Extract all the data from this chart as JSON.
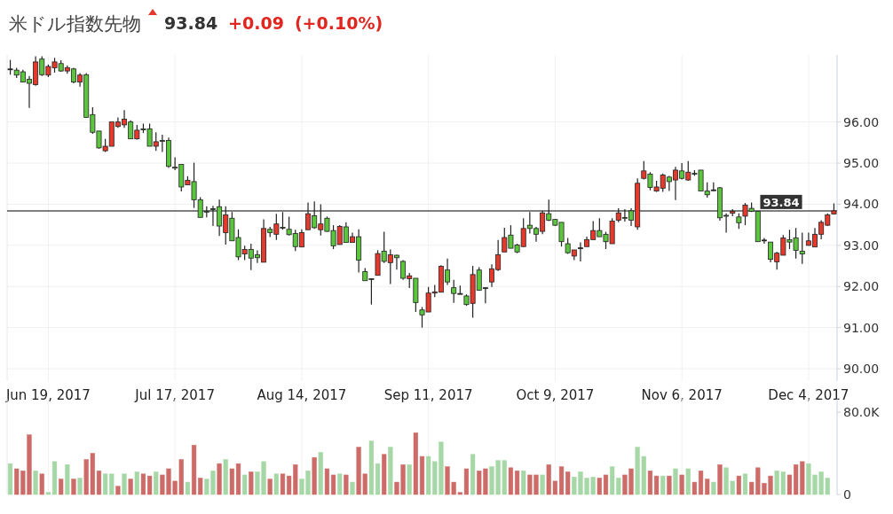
{
  "chart_data": [
    {
      "type": "candlestick",
      "title": "米ドル指数先物",
      "annotations": [
        "93.84",
        "+0.09",
        "(+0.10%)"
      ],
      "categories": [
        null,
        null,
        null,
        null,
        null,
        null,
        "Jun 19, 2017",
        null,
        null,
        null,
        null,
        null,
        null,
        null,
        null,
        null,
        null,
        null,
        null,
        null,
        null,
        null,
        null,
        null,
        null,
        null,
        "Jul 17, 2017",
        null,
        null,
        null,
        null,
        null,
        null,
        null,
        null,
        null,
        null,
        null,
        null,
        null,
        null,
        null,
        null,
        null,
        null,
        null,
        "Aug 14, 2017",
        null,
        null,
        null,
        null,
        null,
        null,
        null,
        null,
        null,
        null,
        null,
        null,
        null,
        null,
        null,
        null,
        null,
        null,
        null,
        "Sep 11, 2017",
        null,
        null,
        null,
        null,
        null,
        null,
        null,
        null,
        null,
        null,
        null,
        null,
        null,
        null,
        null,
        null,
        null,
        null,
        null,
        "Oct 9, 2017",
        null,
        null,
        null,
        null,
        null,
        null,
        null,
        null,
        null,
        null,
        null,
        null,
        null,
        null,
        null,
        null,
        null,
        null,
        null,
        "Nov 6, 2017",
        null,
        null,
        null,
        null,
        null,
        null,
        null,
        null,
        null,
        null,
        null,
        null,
        null,
        null,
        null,
        null,
        null,
        null,
        null,
        "Dec 4, 2017",
        null,
        null,
        null,
        null
      ],
      "ohlc": [
        [
          97.29,
          97.51,
          97.15,
          97.29
        ],
        [
          97.26,
          97.32,
          97.07,
          97.14
        ],
        [
          97.22,
          97.27,
          96.96,
          96.97
        ],
        [
          97.04,
          97.12,
          96.34,
          96.94
        ],
        [
          96.91,
          97.6,
          96.88,
          97.46
        ],
        [
          97.53,
          97.6,
          97.12,
          97.15
        ],
        [
          97.14,
          97.4,
          97.09,
          97.35
        ],
        [
          97.32,
          97.56,
          97.2,
          97.46
        ],
        [
          97.42,
          97.5,
          97.22,
          97.24
        ],
        [
          97.24,
          97.37,
          97.17,
          97.32
        ],
        [
          97.29,
          97.32,
          96.94,
          96.97
        ],
        [
          96.97,
          97.19,
          96.86,
          97.14
        ],
        [
          97.15,
          97.19,
          96.11,
          96.11
        ],
        [
          96.18,
          96.36,
          95.71,
          95.75
        ],
        [
          95.78,
          95.78,
          95.35,
          95.37
        ],
        [
          95.3,
          95.59,
          95.27,
          95.41
        ],
        [
          95.41,
          96.0,
          95.41,
          96.0
        ],
        [
          95.89,
          96.11,
          95.86,
          96.0
        ],
        [
          95.93,
          96.29,
          95.86,
          96.07
        ],
        [
          96.0,
          96.04,
          95.59,
          95.59
        ],
        [
          95.59,
          95.93,
          95.57,
          95.8
        ],
        [
          95.83,
          95.96,
          95.73,
          95.82
        ],
        [
          95.83,
          95.96,
          95.41,
          95.41
        ],
        [
          95.41,
          95.75,
          95.3,
          95.52
        ],
        [
          95.55,
          95.69,
          95.27,
          95.53
        ],
        [
          95.55,
          95.62,
          94.88,
          94.92
        ],
        [
          94.9,
          95.14,
          94.83,
          94.89
        ],
        [
          94.97,
          94.97,
          94.31,
          94.42
        ],
        [
          94.47,
          94.68,
          94.47,
          94.58
        ],
        [
          94.55,
          95.01,
          93.91,
          94.11
        ],
        [
          94.11,
          94.17,
          93.68,
          93.68
        ],
        [
          93.83,
          93.95,
          93.68,
          93.82
        ],
        [
          93.89,
          93.96,
          93.47,
          93.88
        ],
        [
          93.94,
          94.11,
          93.23,
          93.47
        ],
        [
          93.31,
          93.95,
          93.02,
          93.74
        ],
        [
          93.66,
          93.81,
          93.11,
          93.11
        ],
        [
          93.19,
          93.39,
          92.64,
          92.72
        ],
        [
          92.79,
          92.99,
          92.64,
          92.9
        ],
        [
          92.9,
          93.04,
          92.4,
          92.69
        ],
        [
          92.77,
          92.88,
          92.57,
          92.7
        ],
        [
          92.59,
          93.63,
          92.59,
          93.41
        ],
        [
          93.39,
          93.45,
          93.2,
          93.31
        ],
        [
          93.27,
          93.77,
          93.13,
          93.52
        ],
        [
          93.44,
          93.81,
          93.38,
          93.43
        ],
        [
          93.39,
          93.7,
          93.24,
          93.26
        ],
        [
          93.29,
          93.38,
          92.86,
          92.97
        ],
        [
          92.96,
          93.39,
          92.96,
          93.31
        ],
        [
          93.38,
          94.04,
          93.38,
          93.77
        ],
        [
          93.72,
          94.07,
          93.4,
          93.43
        ],
        [
          93.38,
          94.0,
          93.24,
          93.52
        ],
        [
          93.66,
          93.7,
          93.33,
          93.34
        ],
        [
          93.36,
          93.49,
          92.91,
          92.99
        ],
        [
          93.02,
          93.49,
          93.02,
          93.46
        ],
        [
          93.45,
          93.56,
          93.07,
          93.07
        ],
        [
          93.07,
          93.31,
          93.07,
          93.21
        ],
        [
          93.21,
          93.39,
          92.34,
          92.64
        ],
        [
          92.36,
          92.45,
          92.14,
          92.14
        ],
        [
          92.19,
          92.2,
          91.56,
          92.18
        ],
        [
          92.27,
          92.88,
          92.27,
          92.8
        ],
        [
          92.86,
          93.33,
          92.57,
          92.61
        ],
        [
          92.58,
          92.9,
          92.06,
          92.77
        ],
        [
          92.76,
          92.77,
          92.41,
          92.7
        ],
        [
          92.61,
          92.64,
          92.16,
          92.2
        ],
        [
          92.19,
          92.33,
          91.96,
          92.26
        ],
        [
          92.2,
          92.2,
          91.38,
          91.61
        ],
        [
          91.43,
          91.5,
          91.0,
          91.31
        ],
        [
          91.38,
          91.99,
          91.38,
          91.84
        ],
        [
          91.84,
          92.04,
          91.74,
          91.87
        ],
        [
          91.86,
          92.52,
          91.86,
          92.49
        ],
        [
          92.4,
          92.68,
          92.04,
          92.11
        ],
        [
          91.97,
          92.16,
          91.6,
          91.83
        ],
        [
          91.83,
          92.02,
          91.83,
          91.83
        ],
        [
          91.77,
          91.81,
          91.53,
          91.56
        ],
        [
          91.59,
          92.5,
          91.24,
          92.29
        ],
        [
          92.4,
          92.47,
          91.9,
          91.91
        ],
        [
          91.97,
          91.97,
          91.59,
          91.97
        ],
        [
          92.11,
          92.54,
          91.99,
          92.43
        ],
        [
          92.41,
          93.13,
          92.38,
          92.77
        ],
        [
          92.84,
          93.43,
          92.84,
          93.19
        ],
        [
          93.25,
          93.49,
          92.93,
          92.93
        ],
        [
          93.01,
          93.04,
          92.81,
          92.84
        ],
        [
          92.97,
          93.66,
          92.97,
          93.41
        ],
        [
          93.49,
          93.81,
          93.29,
          93.41
        ],
        [
          93.41,
          93.45,
          93.09,
          93.27
        ],
        [
          93.34,
          93.84,
          93.27,
          93.79
        ],
        [
          93.77,
          94.11,
          93.59,
          93.61
        ],
        [
          93.63,
          93.64,
          93.47,
          93.49
        ],
        [
          93.56,
          93.56,
          92.97,
          93.09
        ],
        [
          93.04,
          93.18,
          92.79,
          92.82
        ],
        [
          92.74,
          92.89,
          92.64,
          92.89
        ],
        [
          92.94,
          93.07,
          92.61,
          92.94
        ],
        [
          92.97,
          93.21,
          92.97,
          93.14
        ],
        [
          93.14,
          93.59,
          93.14,
          93.36
        ],
        [
          93.36,
          93.66,
          93.21,
          93.21
        ],
        [
          93.27,
          93.33,
          92.91,
          93.09
        ],
        [
          93.04,
          93.66,
          93.04,
          93.59
        ],
        [
          93.61,
          93.9,
          93.56,
          93.79
        ],
        [
          93.68,
          93.88,
          93.58,
          93.67
        ],
        [
          93.84,
          93.9,
          93.47,
          93.61
        ],
        [
          93.45,
          94.63,
          93.38,
          94.51
        ],
        [
          94.63,
          95.05,
          94.6,
          94.81
        ],
        [
          94.73,
          94.78,
          94.34,
          94.41
        ],
        [
          94.32,
          94.57,
          94.3,
          94.42
        ],
        [
          94.39,
          94.75,
          94.3,
          94.71
        ],
        [
          94.66,
          94.69,
          94.32,
          94.55
        ],
        [
          94.59,
          94.91,
          94.1,
          94.83
        ],
        [
          94.81,
          95.0,
          94.6,
          94.63
        ],
        [
          94.59,
          95.05,
          94.57,
          94.78
        ],
        [
          94.75,
          94.83,
          94.69,
          94.74
        ],
        [
          94.83,
          94.83,
          94.32,
          94.32
        ],
        [
          94.32,
          94.53,
          94.16,
          94.23
        ],
        [
          94.35,
          94.53,
          94.32,
          94.35
        ],
        [
          94.4,
          94.42,
          93.6,
          93.67
        ],
        [
          93.73,
          93.78,
          93.31,
          93.72
        ],
        [
          93.78,
          93.88,
          93.71,
          93.83
        ],
        [
          93.69,
          93.78,
          93.4,
          93.55
        ],
        [
          93.71,
          94.03,
          93.49,
          93.98
        ],
        [
          93.9,
          94.04,
          93.81,
          93.83
        ],
        [
          93.83,
          93.83,
          93.09,
          93.09
        ],
        [
          93.13,
          93.18,
          93.04,
          93.13
        ],
        [
          93.08,
          93.08,
          92.59,
          92.66
        ],
        [
          92.6,
          92.84,
          92.41,
          92.81
        ],
        [
          92.76,
          93.25,
          92.76,
          93.18
        ],
        [
          93.14,
          93.38,
          92.91,
          93.08
        ],
        [
          93.18,
          93.42,
          92.68,
          92.88
        ],
        [
          92.86,
          93.31,
          92.55,
          92.79
        ],
        [
          93.0,
          93.31,
          92.99,
          93.11
        ],
        [
          92.96,
          93.42,
          92.96,
          93.27
        ],
        [
          93.27,
          93.61,
          93.15,
          93.56
        ],
        [
          93.49,
          93.78,
          93.47,
          93.74
        ],
        [
          93.76,
          94.02,
          93.75,
          93.84
        ]
      ],
      "ylim": [
        89.7,
        97.63
      ],
      "yticks": [
        {
          "value": 90,
          "label": "90.00"
        },
        {
          "value": 91,
          "label": "91.00"
        },
        {
          "value": 92,
          "label": "92.00"
        },
        {
          "value": 93,
          "label": "93.00"
        },
        {
          "value": 94,
          "label": "94.00"
        },
        {
          "value": 95,
          "label": "95.00"
        },
        {
          "value": 96,
          "label": "96.00"
        }
      ],
      "grid": true,
      "ref_lines": [
        {
          "axis": "y",
          "value": 93.84,
          "label": "93.84",
          "color": "#555555"
        }
      ]
    },
    {
      "type": "bar",
      "tick_labels": "y",
      "grid": "x",
      "categories": [
        null,
        null,
        null,
        null,
        null,
        null,
        null,
        null,
        null,
        null,
        null,
        null,
        null,
        null,
        null,
        null,
        null,
        null,
        null,
        null,
        null,
        null,
        null,
        null,
        null,
        null,
        null,
        null,
        null,
        null,
        null,
        null,
        null,
        null,
        null,
        null,
        null,
        null,
        null,
        null,
        null,
        null,
        null,
        null,
        null,
        null,
        null,
        null,
        null,
        null,
        null,
        null,
        null,
        null,
        null,
        null,
        null,
        null,
        null,
        null,
        null,
        null,
        null,
        null,
        null,
        null,
        null,
        null,
        null,
        null,
        null,
        null,
        null,
        null,
        null,
        null,
        null,
        null,
        null,
        null,
        null,
        null,
        null,
        null,
        null,
        null,
        null,
        null,
        null,
        null,
        null,
        null,
        null,
        null,
        null,
        null,
        null,
        null,
        null,
        null,
        null,
        null,
        null,
        null,
        null,
        null,
        null,
        null,
        null,
        null,
        null,
        null,
        null,
        null,
        null,
        null,
        null,
        null,
        null,
        null,
        null,
        null,
        null,
        null,
        null,
        null,
        null,
        null,
        null,
        null,
        null
      ],
      "values": [
        30000,
        25000,
        23000,
        58000,
        23000,
        20000,
        2000,
        32000,
        15000,
        29000,
        15000,
        16000,
        34000,
        40000,
        23000,
        20000,
        20000,
        8000,
        20000,
        15000,
        22000,
        20000,
        18000,
        22000,
        19000,
        25000,
        13000,
        34000,
        12000,
        48000,
        16000,
        15000,
        23000,
        30000,
        34000,
        25000,
        30000,
        19000,
        22000,
        22000,
        32000,
        15000,
        20000,
        20000,
        18000,
        29000,
        15000,
        23000,
        36000,
        41000,
        25000,
        19000,
        20000,
        19000,
        12000,
        46000,
        20000,
        52000,
        30000,
        39000,
        46000,
        12000,
        29000,
        29000,
        60000,
        37000,
        37000,
        32000,
        51000,
        27000,
        12000,
        2000,
        25000,
        39000,
        23000,
        25000,
        27000,
        33000,
        33000,
        26000,
        23000,
        23000,
        19000,
        19000,
        19000,
        29000,
        13000,
        27000,
        22000,
        17000,
        22000,
        16000,
        17000,
        16000,
        19000,
        27000,
        16000,
        19000,
        25000,
        46000,
        37000,
        23000,
        18000,
        18000,
        18000,
        25000,
        19000,
        25000,
        12000,
        23000,
        15000,
        12000,
        29000,
        26000,
        13000,
        18000,
        20000,
        12000,
        26000,
        11000,
        18000,
        23000,
        22000,
        19000,
        29000,
        32000,
        30000,
        19000,
        22000,
        16000,
        null
      ],
      "colors": [
        "#a6d7a6",
        "#cd6b68",
        "#cd6b68",
        "#cd6b68",
        "#a6d7a6",
        "#cd6b68",
        "#a6d7a6",
        "#a6d7a6",
        "#cd6b68",
        "#a6d7a6",
        "#cd6b68",
        "#a6d7a6",
        "#cd6b68",
        "#cd6b68",
        "#cd6b68",
        "#a6d7a6",
        "#a6d7a6",
        "#cd6b68",
        "#a6d7a6",
        "#cd6b68",
        "#a6d7a6",
        "#cd6b68",
        "#cd6b68",
        "#a6d7a6",
        "#cd6b68",
        "#cd6b68",
        "#cd6b68",
        "#cd6b68",
        "#a6d7a6",
        "#cd6b68",
        "#cd6b68",
        "#a6d7a6",
        "#a6d7a6",
        "#cd6b68",
        "#a6d7a6",
        "#cd6b68",
        "#cd6b68",
        "#a6d7a6",
        "#cd6b68",
        "#a6d7a6",
        "#a6d7a6",
        "#cd6b68",
        "#a6d7a6",
        "#cd6b68",
        "#cd6b68",
        "#cd6b68",
        "#a6d7a6",
        "#a6d7a6",
        "#cd6b68",
        "#a6d7a6",
        "#cd6b68",
        "#cd6b68",
        "#a6d7a6",
        "#cd6b68",
        "#a6d7a6",
        "#cd6b68",
        "#cd6b68",
        "#a6d7a6",
        "#a6d7a6",
        "#cd6b68",
        "#a6d7a6",
        "#cd6b68",
        "#cd6b68",
        "#a6d7a6",
        "#cd6b68",
        "#cd6b68",
        "#a6d7a6",
        "#a6d7a6",
        "#a6d7a6",
        "#cd6b68",
        "#cd6b68",
        "#cd6b68",
        "#cd6b68",
        "#a6d7a6",
        "#cd6b68",
        "#cd6b68",
        "#a6d7a6",
        "#a6d7a6",
        "#a6d7a6",
        "#cd6b68",
        "#cd6b68",
        "#a6d7a6",
        "#cd6b68",
        "#cd6b68",
        "#a6d7a6",
        "#cd6b68",
        "#cd6b68",
        "#cd6b68",
        "#cd6b68",
        "#a6d7a6",
        "#a6d7a6",
        "#a6d7a6",
        "#a6d7a6",
        "#cd6b68",
        "#cd6b68",
        "#a6d7a6",
        "#a6d7a6",
        "#cd6b68",
        "#cd6b68",
        "#a6d7a6",
        "#a6d7a6",
        "#cd6b68",
        "#cd6b68",
        "#a6d7a6",
        "#cd6b68",
        "#a6d7a6",
        "#cd6b68",
        "#a6d7a6",
        "#cd6b68",
        "#cd6b68",
        "#cd6b68",
        "#a6d7a6",
        "#cd6b68",
        "#a6d7a6",
        "#a6d7a6",
        "#cd6b68",
        "#a6d7a6",
        "#cd6b68",
        "#cd6b68",
        "#cd6b68",
        "#cd6b68",
        "#a6d7a6",
        "#a6d7a6",
        "#cd6b68",
        "#cd6b68",
        "#cd6b68",
        "#a6d7a6",
        "#a6d7a6",
        "#a6d7a6",
        "#a6d7a6",
        null
      ],
      "ylim": [
        0,
        93000
      ],
      "yticks": [
        0,
        {
          "value": 80000,
          "label": "80.0K"
        }
      ]
    }
  ]
}
